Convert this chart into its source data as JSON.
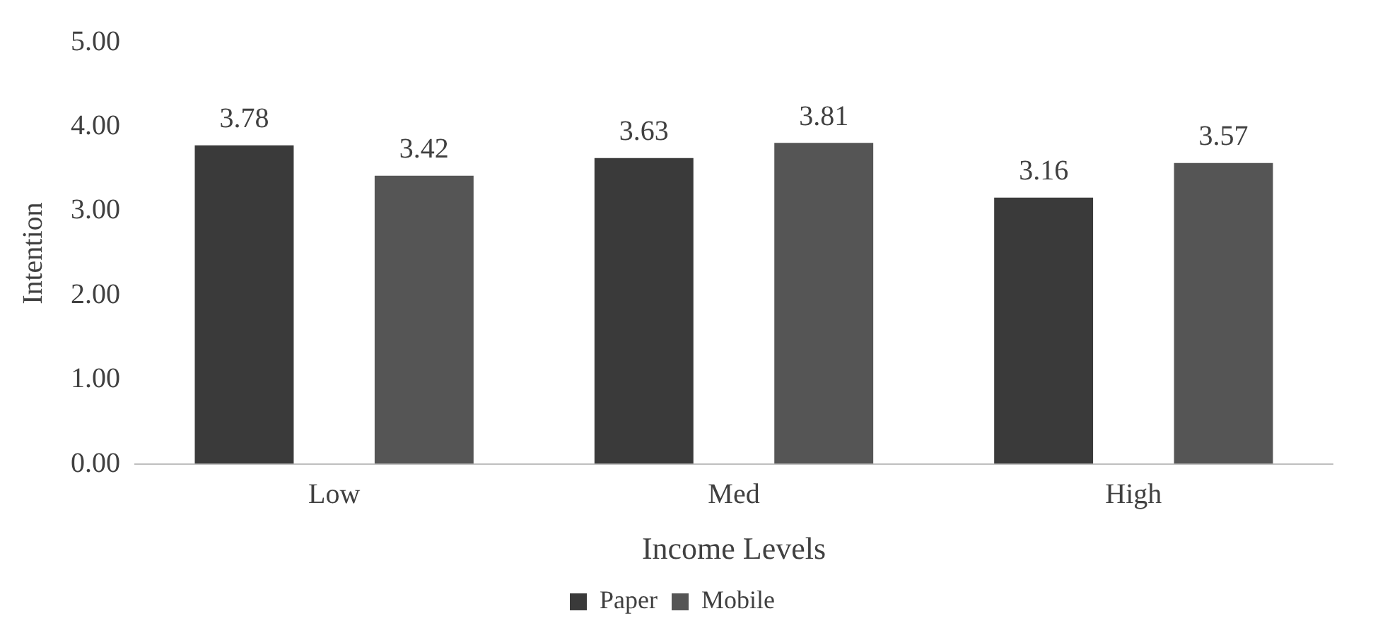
{
  "chart_data": {
    "type": "bar",
    "xlabel": "Income Levels",
    "ylabel": "Intention",
    "categories": [
      "Low",
      "Med",
      "High"
    ],
    "series": [
      {
        "name": "Paper",
        "color": "#3a3a3a",
        "values": [
          3.78,
          3.63,
          3.16
        ]
      },
      {
        "name": "Mobile",
        "color": "#555555",
        "values": [
          3.42,
          3.81,
          3.57
        ]
      }
    ],
    "ylim": [
      0,
      5
    ],
    "yticks": [
      {
        "value": 0,
        "label": "0.00"
      },
      {
        "value": 1,
        "label": "1.00"
      },
      {
        "value": 2,
        "label": "2.00"
      },
      {
        "value": 3,
        "label": "3.00"
      },
      {
        "value": 4,
        "label": "4.00"
      },
      {
        "value": 5,
        "label": "5.00"
      }
    ],
    "grid": false,
    "legend": "bottom",
    "data_labels": true
  }
}
